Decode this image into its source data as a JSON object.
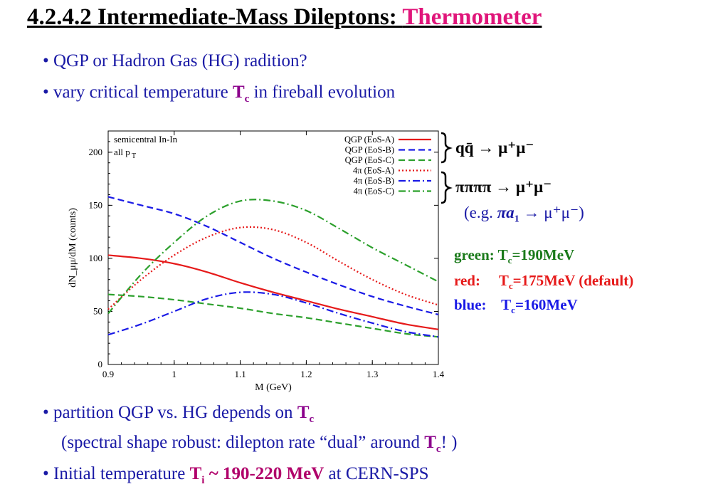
{
  "slide": {
    "title_main": "4.2.4.2 Intermediate-Mass Dileptons: ",
    "title_highlight": "Thermometer",
    "bullets": [
      {
        "prefix": "• QGP or Hadron Gas (HG) radition?"
      },
      {
        "prefix": "• vary critical temperature ",
        "sym": "T",
        "sub": "c",
        "suffix": " in fireball evolution"
      },
      {
        "prefix": "• partition QGP vs. HG depends on ",
        "sym": "T",
        "sub": "c"
      },
      {
        "prefix": "(spectral shape robust: dilepton rate “dual” around ",
        "sym": "T",
        "sub": "c",
        "suffix": "! )"
      },
      {
        "prefix": "• Initial temperature ",
        "sym": "T",
        "sub": "i",
        "value": " ~ 190-220 MeV",
        "suffix": " at CERN-SPS"
      }
    ],
    "annotations": {
      "qq": "qq̄ → μ⁺μ⁻",
      "pipi": "ππππ → μ⁺μ⁻",
      "eg_prefix": "(e.g. ",
      "eg_body": "πa",
      "eg_sub": "1",
      "eg_suffix": " → μ⁺μ⁻)"
    },
    "tc_legend": [
      {
        "label": "green:",
        "text": "T",
        "sub": "c",
        "value": "=190MeV",
        "color": "#1a7a1a"
      },
      {
        "label": "red:",
        "text": "T",
        "sub": "c",
        "value": "=175MeV (default)",
        "color": "#e61a1a"
      },
      {
        "label": "blue:",
        "text": "T",
        "sub": "c",
        "value": "=160MeV",
        "color": "#1a1ae6"
      }
    ]
  },
  "chart_data": {
    "type": "line",
    "title": "",
    "xlabel": "M (GeV)",
    "ylabel": "dN_μμ/dM (counts)",
    "xlim": [
      0.9,
      1.4
    ],
    "ylim": [
      0,
      220
    ],
    "xticks": [
      0.9,
      1.0,
      1.1,
      1.2,
      1.3,
      1.4
    ],
    "xtick_labels": [
      "0.9",
      "1",
      "1.1",
      "1.2",
      "1.3",
      "1.4"
    ],
    "yticks": [
      0,
      50,
      100,
      150,
      200
    ],
    "ytick_labels": [
      "0",
      "50",
      "100",
      "150",
      "200"
    ],
    "annotation_lines": [
      "semicentral In-In",
      "all p",
      "T"
    ],
    "legend_position": "top-right",
    "series": [
      {
        "name": "QGP (EoS-A)",
        "color": "#e61a1a",
        "dash": "solid",
        "x": [
          0.9,
          0.95,
          1.0,
          1.05,
          1.1,
          1.15,
          1.2,
          1.25,
          1.3,
          1.35,
          1.4
        ],
        "y": [
          103,
          100,
          95,
          87,
          77,
          68,
          60,
          52,
          45,
          38,
          33
        ]
      },
      {
        "name": "QGP (EoS-B)",
        "color": "#1a1ae6",
        "dash": "dashed",
        "x": [
          0.9,
          0.95,
          1.0,
          1.05,
          1.1,
          1.15,
          1.2,
          1.25,
          1.3,
          1.35,
          1.4
        ],
        "y": [
          158,
          150,
          142,
          130,
          115,
          100,
          87,
          75,
          64,
          55,
          47
        ]
      },
      {
        "name": "QGP (EoS-C)",
        "color": "#2ca02c",
        "dash": "dashed",
        "x": [
          0.9,
          0.95,
          1.0,
          1.05,
          1.1,
          1.15,
          1.2,
          1.25,
          1.3,
          1.35,
          1.4
        ],
        "y": [
          66,
          64,
          61,
          57,
          53,
          48,
          44,
          39,
          34,
          29,
          26
        ]
      },
      {
        "name": "4π (EoS-A)",
        "color": "#e61a1a",
        "dash": "dotted",
        "x": [
          0.9,
          0.95,
          1.0,
          1.05,
          1.1,
          1.15,
          1.2,
          1.25,
          1.3,
          1.35,
          1.4
        ],
        "y": [
          52,
          80,
          103,
          120,
          129,
          127,
          115,
          97,
          80,
          66,
          56
        ]
      },
      {
        "name": "4π (EoS-B)",
        "color": "#1a1ae6",
        "dash": "dashdot",
        "x": [
          0.9,
          0.95,
          1.0,
          1.05,
          1.1,
          1.15,
          1.2,
          1.25,
          1.3,
          1.35,
          1.4
        ],
        "y": [
          28,
          38,
          50,
          62,
          68,
          66,
          58,
          48,
          39,
          31,
          26
        ]
      },
      {
        "name": "4π (EoS-C)",
        "color": "#2ca02c",
        "dash": "dashdot",
        "x": [
          0.9,
          0.95,
          1.0,
          1.05,
          1.1,
          1.15,
          1.2,
          1.25,
          1.3,
          1.35,
          1.4
        ],
        "y": [
          48,
          85,
          115,
          140,
          154,
          154,
          145,
          128,
          110,
          94,
          78
        ]
      }
    ]
  }
}
